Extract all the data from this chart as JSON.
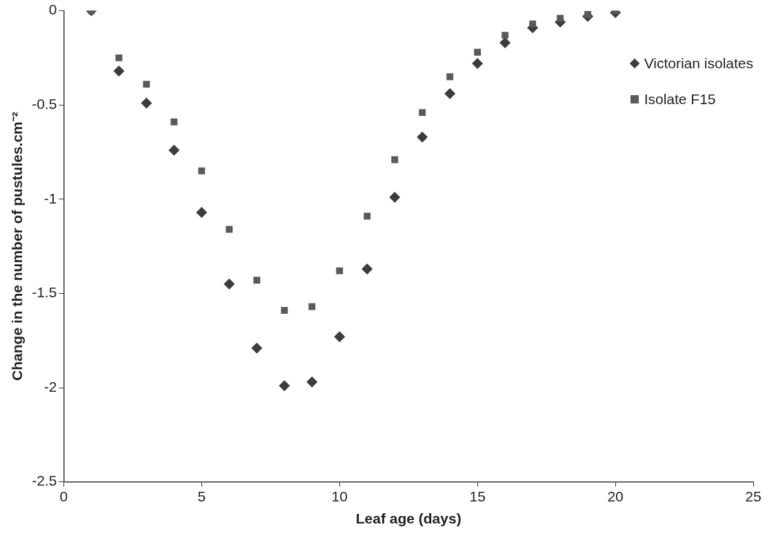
{
  "chart_data": {
    "type": "scatter",
    "xlabel": "Leaf age (days)",
    "ylabel": "Change in the number of pustules.cm⁻²",
    "x": [
      1,
      2,
      3,
      4,
      5,
      6,
      7,
      8,
      9,
      10,
      11,
      12,
      13,
      14,
      15,
      16,
      17,
      18,
      19,
      20
    ],
    "series": [
      {
        "name": "Victorian isolates",
        "color": "#3c3c3c",
        "marker": "diamond",
        "values": [
          0,
          -0.32,
          -0.49,
          -0.74,
          -1.07,
          -1.45,
          -1.79,
          -1.99,
          -1.97,
          -1.73,
          -1.37,
          -0.99,
          -0.67,
          -0.44,
          -0.28,
          -0.17,
          -0.09,
          -0.06,
          -0.03,
          -0.01
        ]
      },
      {
        "name": "Isolate F15",
        "color": "#5a5a5a",
        "marker": "square",
        "values": [
          0,
          -0.25,
          -0.39,
          -0.59,
          -0.85,
          -1.16,
          -1.43,
          -1.59,
          -1.57,
          -1.38,
          -1.09,
          -0.79,
          -0.54,
          -0.35,
          -0.22,
          -0.13,
          -0.07,
          -0.04,
          -0.02,
          0
        ]
      }
    ],
    "xlim": [
      0,
      25
    ],
    "xticks": [
      0,
      5,
      10,
      15,
      20,
      25
    ],
    "ylim": [
      -2.5,
      0
    ],
    "yticks": [
      -2.5,
      -2,
      -1.5,
      -1,
      -0.5,
      0
    ],
    "grid": false,
    "legend": "top right"
  }
}
